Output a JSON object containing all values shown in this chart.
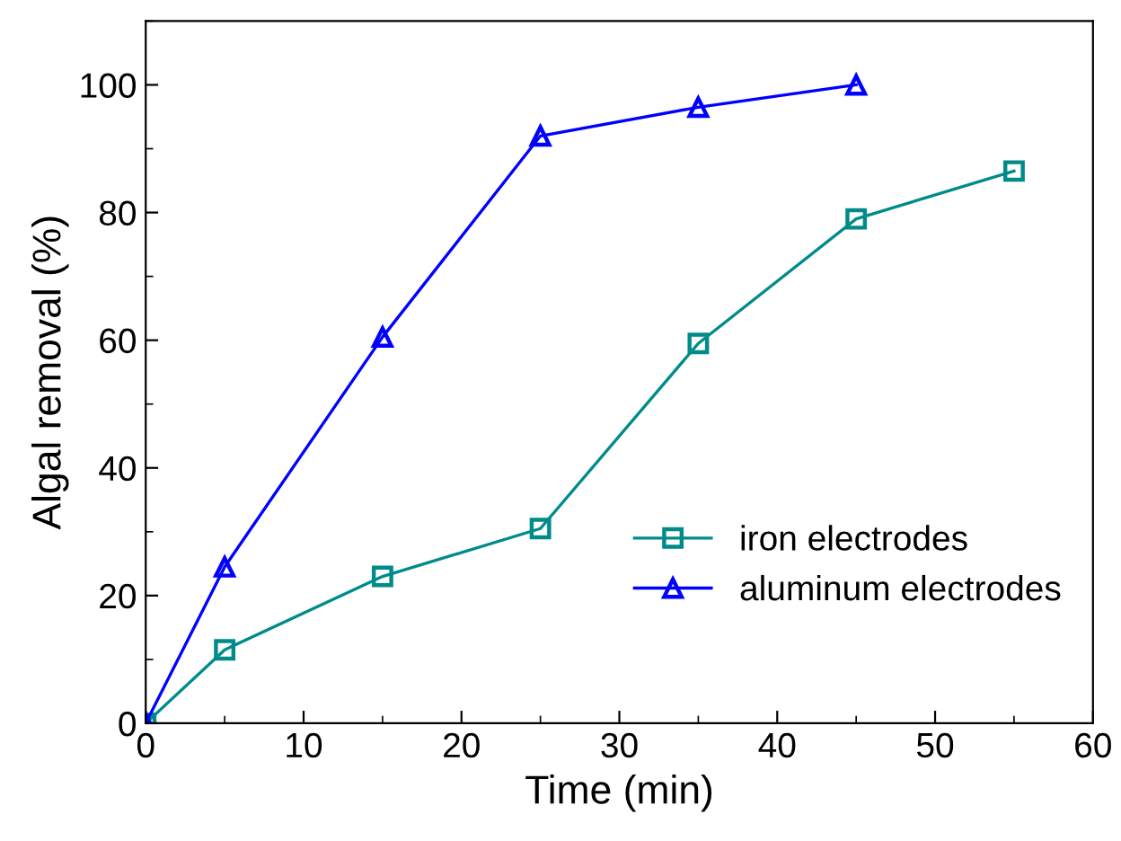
{
  "chart_data": {
    "type": "line",
    "xlabel": "Time (min)",
    "ylabel": "Algal removal (%)",
    "xlim": [
      0,
      60
    ],
    "xticks": [
      0,
      10,
      20,
      30,
      40,
      50,
      60
    ],
    "ylim": [
      0,
      110
    ],
    "yticks": [
      0,
      20,
      40,
      60,
      80,
      100
    ],
    "grid": false,
    "legend": "bottom right",
    "line_style": "solid",
    "series": [
      {
        "name": "iron electrodes",
        "color": "#008b8b",
        "marker": "square",
        "x": [
          0,
          5,
          15,
          25,
          35,
          45,
          55
        ],
        "values": [
          0,
          11.5,
          23,
          30.5,
          59.5,
          79,
          86.5
        ]
      },
      {
        "name": "aluminum electrodes",
        "color": "#0000ff",
        "marker": "triangle",
        "x": [
          0,
          5,
          15,
          25,
          35,
          45
        ],
        "values": [
          0,
          24.5,
          60.5,
          92,
          96.5,
          100
        ]
      }
    ]
  }
}
